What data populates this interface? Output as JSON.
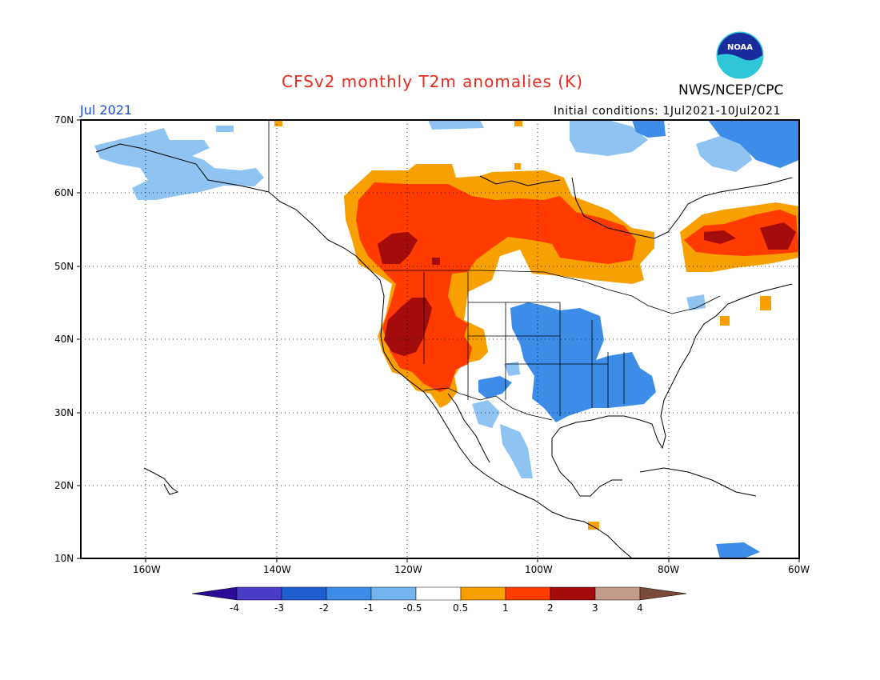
{
  "header": {
    "title": "CFSv2 monthly T2m anomalies (K)",
    "month": "Jul 2021",
    "initial_conditions": "Initial conditions: 1Jul2021-10Jul2021",
    "agency": "NWS/NCEP/CPC",
    "logo_text": "NOAA"
  },
  "axes": {
    "lat_labels": [
      "70N",
      "60N",
      "50N",
      "40N",
      "30N",
      "20N",
      "10N"
    ],
    "lon_labels": [
      "160W",
      "140W",
      "120W",
      "100W",
      "80W",
      "60W"
    ]
  },
  "colorbar": {
    "labels": [
      "-4",
      "-3",
      "-2",
      "-1",
      "-0.5",
      "0.5",
      "1",
      "2",
      "3",
      "4"
    ],
    "colors": [
      "#2a0a96",
      "#4b3cc8",
      "#1f5fd2",
      "#3d8ce8",
      "#74b4ef",
      "#ffffff",
      "#f7a000",
      "#ff3b00",
      "#a40c0c",
      "#c49a8a",
      "#7a4a3a"
    ]
  },
  "regions": [
    {
      "name": "Alaska cool",
      "color": "#8ec3f2"
    },
    {
      "name": "Western Canada warm",
      "color": "#ff3b00"
    },
    {
      "name": "Pacific Northwest / Great Basin warm",
      "color": "#a40c0c"
    },
    {
      "name": "Central US cool",
      "color": "#3d8ce8"
    },
    {
      "name": "Eastern Canada warm",
      "color": "#f7a000"
    }
  ]
}
